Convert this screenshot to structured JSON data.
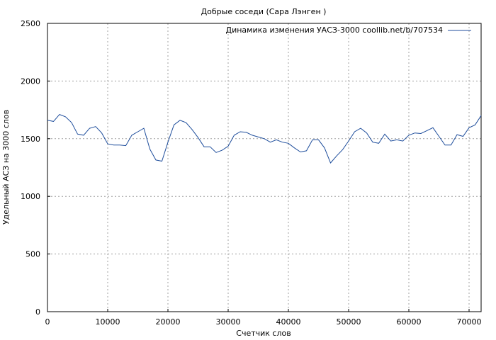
{
  "chart_data": {
    "type": "line",
    "title": "Добрые соседи (Сара Лэнген )",
    "xlabel": "Счетчик слов",
    "ylabel": "Удельный АСЗ на 3000 слов",
    "xlim": [
      0,
      72000
    ],
    "ylim": [
      0,
      2500
    ],
    "xticks": [
      0,
      10000,
      20000,
      30000,
      40000,
      50000,
      60000,
      70000
    ],
    "yticks": [
      0,
      500,
      1000,
      1500,
      2000,
      2500
    ],
    "grid": true,
    "legend_position": "top-right",
    "series": [
      {
        "name": "Динамика изменения УАСЗ-3000 coollib.net/b/707534",
        "color": "#1f4e9c",
        "x": [
          0,
          1000,
          2000,
          3000,
          4000,
          5000,
          6000,
          7000,
          8000,
          9000,
          10000,
          11000,
          12000,
          13000,
          14000,
          15000,
          16000,
          17000,
          18000,
          19000,
          20000,
          21000,
          22000,
          23000,
          24000,
          25000,
          26000,
          27000,
          28000,
          29000,
          30000,
          31000,
          32000,
          33000,
          34000,
          35000,
          36000,
          37000,
          38000,
          39000,
          40000,
          41000,
          42000,
          43000,
          44000,
          45000,
          46000,
          47000,
          48000,
          49000,
          50000,
          51000,
          52000,
          53000,
          54000,
          55000,
          56000,
          57000,
          58000,
          59000,
          60000,
          61000,
          62000,
          63000,
          64000,
          65000,
          66000,
          67000,
          68000,
          69000,
          70000,
          71000,
          72000
        ],
        "values": [
          1660,
          1650,
          1710,
          1690,
          1640,
          1540,
          1530,
          1590,
          1605,
          1550,
          1455,
          1445,
          1445,
          1440,
          1530,
          1560,
          1590,
          1410,
          1315,
          1305,
          1470,
          1620,
          1660,
          1640,
          1580,
          1510,
          1430,
          1430,
          1380,
          1400,
          1435,
          1530,
          1560,
          1555,
          1530,
          1515,
          1500,
          1470,
          1490,
          1470,
          1460,
          1420,
          1385,
          1395,
          1490,
          1490,
          1420,
          1290,
          1350,
          1405,
          1480,
          1560,
          1590,
          1550,
          1470,
          1460,
          1540,
          1480,
          1490,
          1480,
          1530,
          1550,
          1545,
          1570,
          1595,
          1520,
          1445,
          1445,
          1535,
          1520,
          1595,
          1620,
          1700
        ]
      }
    ]
  }
}
